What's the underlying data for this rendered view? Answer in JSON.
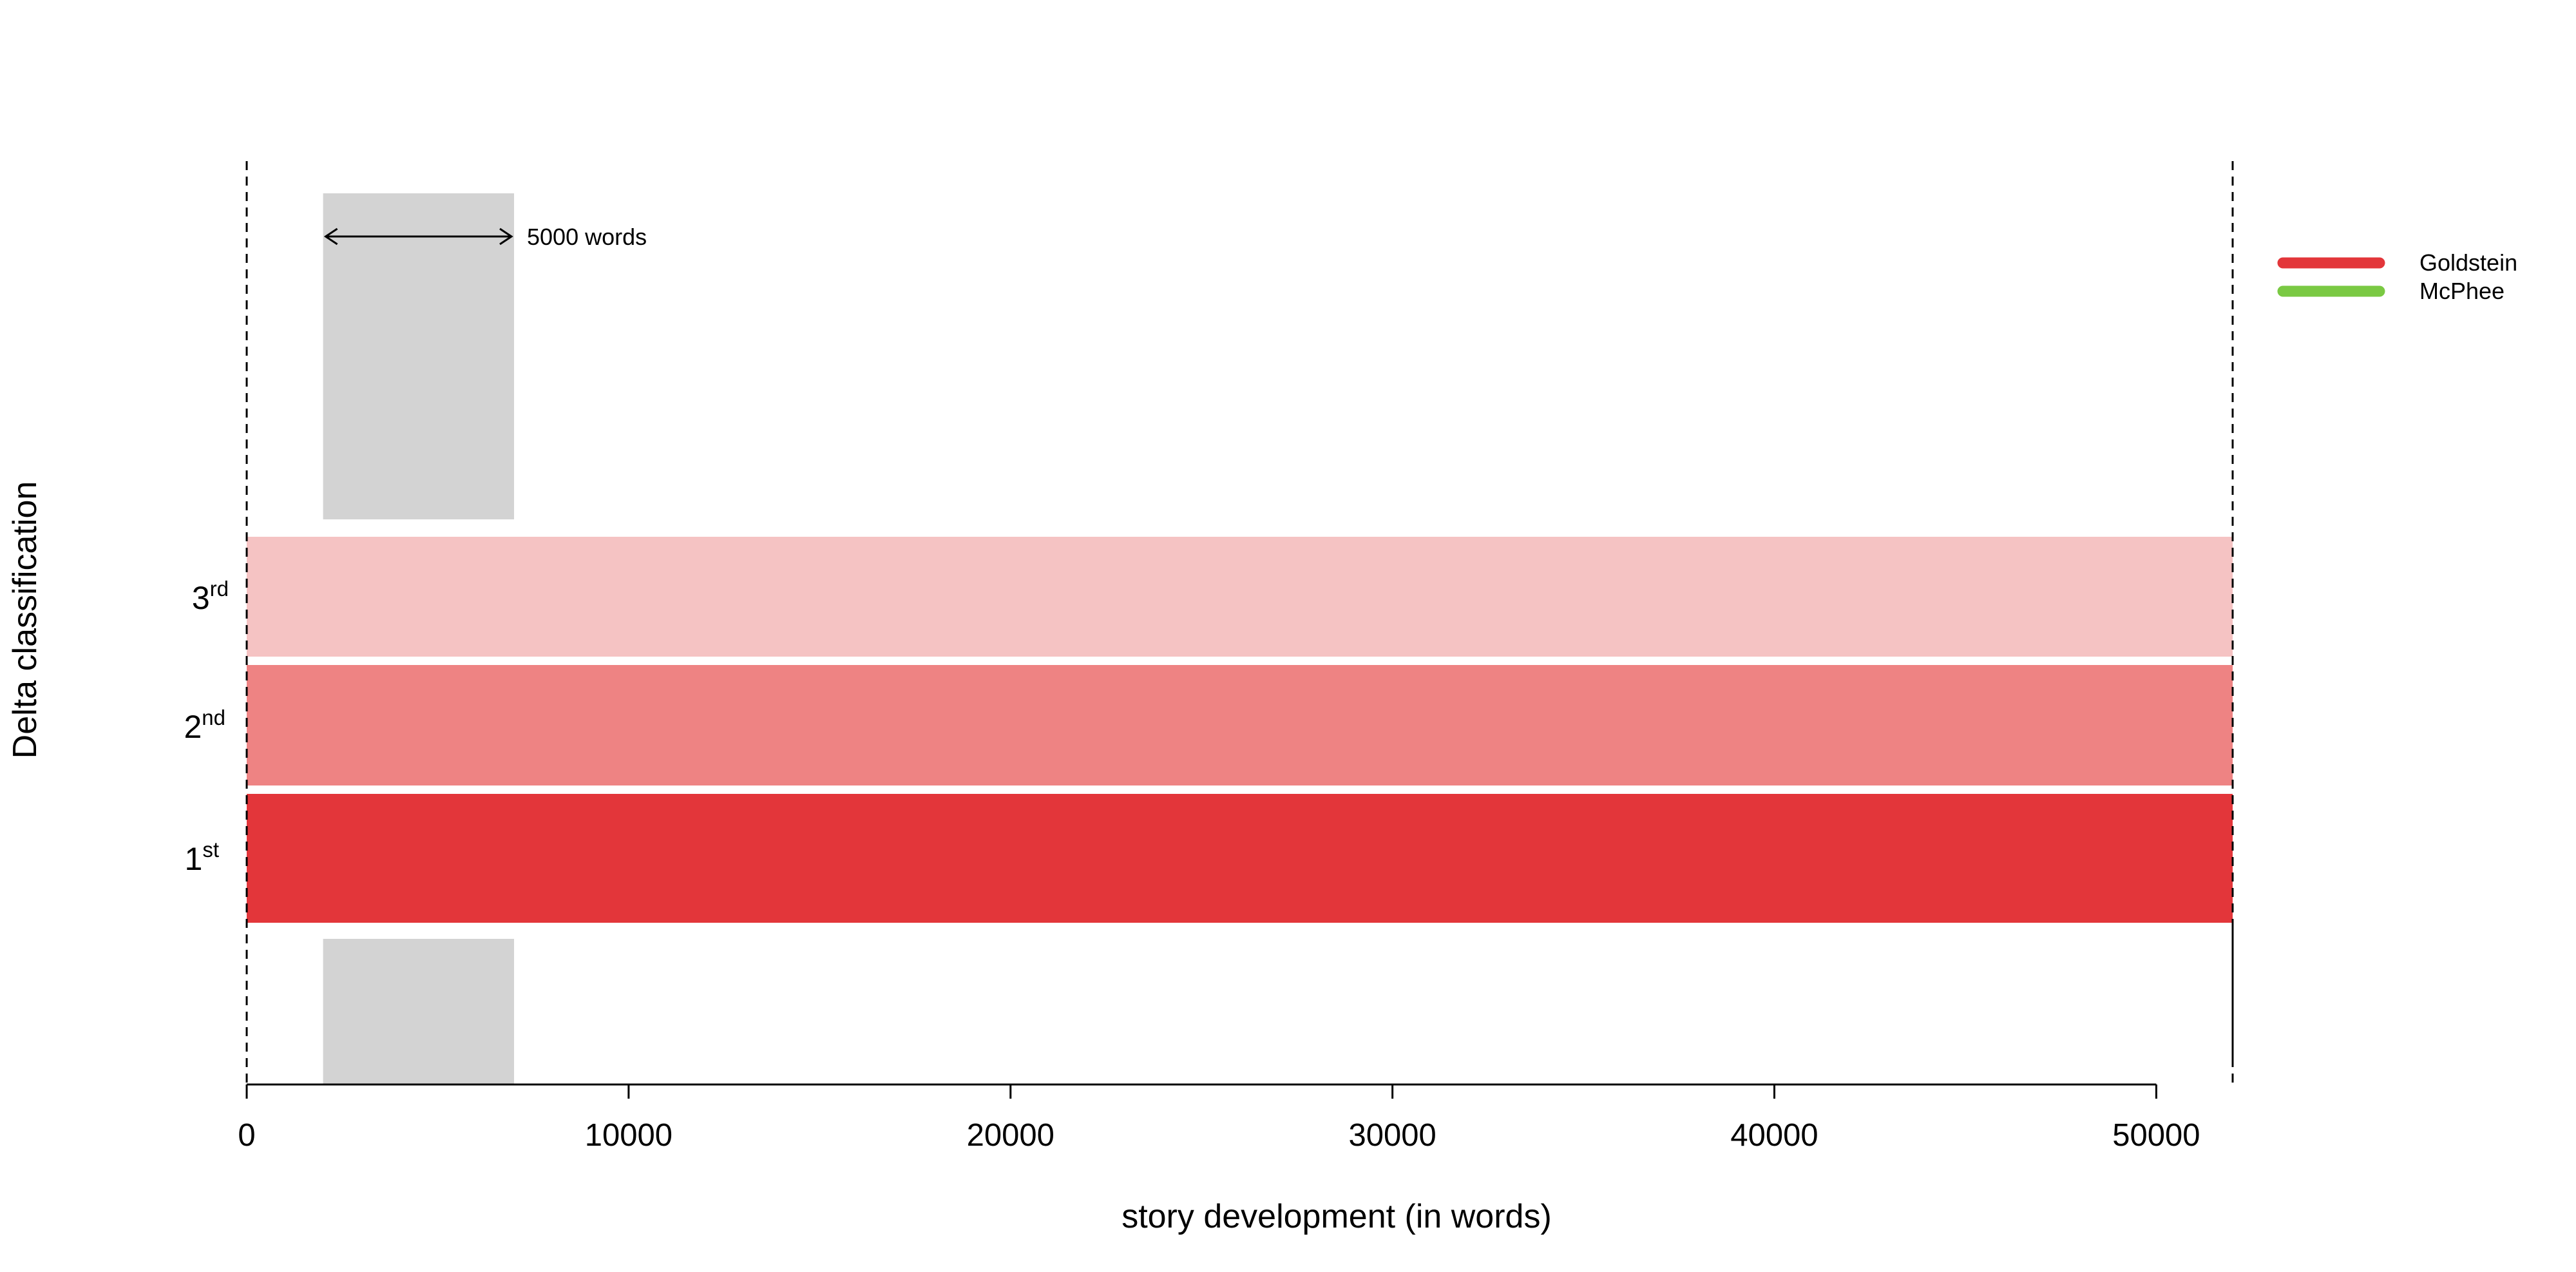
{
  "chart_data": {
    "type": "bar",
    "xlabel": "story development (in words)",
    "ylabel": "Delta classification",
    "xlim": [
      0,
      52000
    ],
    "x_ticks": [
      0,
      10000,
      20000,
      30000,
      40000,
      50000
    ],
    "x_tick_labels": [
      "0",
      "10000",
      "20000",
      "30000",
      "40000",
      "50000"
    ],
    "grid": false,
    "legend_position": "top-right",
    "legend": [
      {
        "name": "Goldstein",
        "color": "#e3363a"
      },
      {
        "name": "McPhee",
        "color": "#7ac943"
      }
    ],
    "ranks": [
      {
        "rank": 1,
        "base": "1",
        "sup": "st",
        "author": "Goldstein",
        "start": 0,
        "end": 52000,
        "color": "#e3363a"
      },
      {
        "rank": 2,
        "base": "2",
        "sup": "nd",
        "author": "Goldstein",
        "start": 0,
        "end": 52000,
        "color": "#ee8383"
      },
      {
        "rank": 3,
        "base": "3",
        "sup": "rd",
        "author": "Goldstein",
        "start": 0,
        "end": 52000,
        "color": "#f5c3c3"
      }
    ],
    "window": {
      "start": 2000,
      "end": 7000,
      "label": "5000 words",
      "color": "#d3d3d3"
    },
    "boundaries": [
      0,
      52000
    ]
  }
}
